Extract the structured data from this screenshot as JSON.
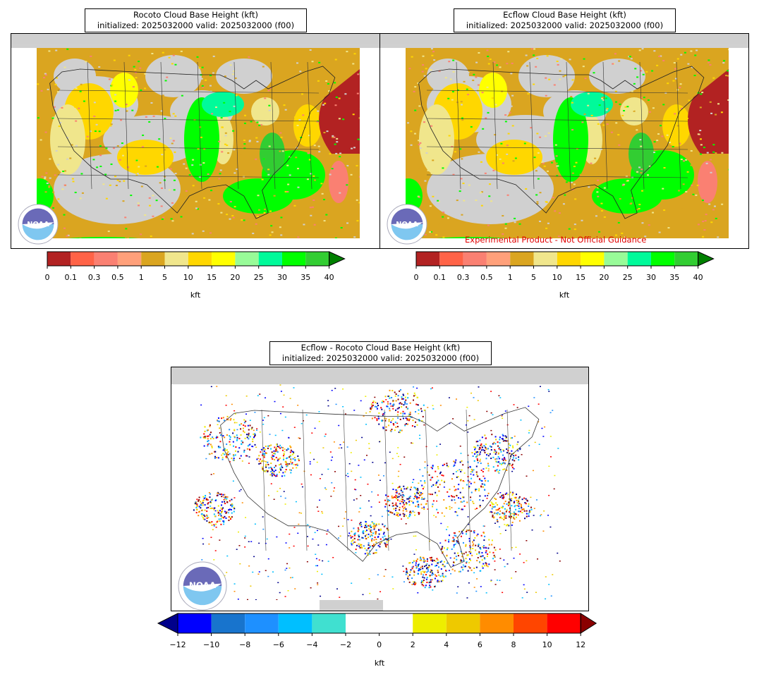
{
  "panels": [
    {
      "id": "rocoto",
      "title_line1": "Rocoto Cloud Base Height (kft)",
      "title_line2": "initialized: 2025032000 valid: 2025032000 (f00)"
    },
    {
      "id": "ecflow",
      "title_line1": "Ecflow Cloud Base Height (kft)",
      "title_line2": "initialized: 2025032000 valid: 2025032000 (f00)",
      "disclaimer": "Experimental Product - Not Official Guidance"
    },
    {
      "id": "diff",
      "title_line1": "Ecflow - Rocoto Cloud Base Height (kft)",
      "title_line2": "initialized: 2025032000 valid: 2025032000 (f00)"
    }
  ],
  "logo_text": "NOAA",
  "colorbar_top": {
    "unit_label": "kft",
    "ticks": [
      "0",
      "0.1",
      "0.3",
      "0.5",
      "1",
      "5",
      "10",
      "15",
      "20",
      "25",
      "30",
      "35",
      "40"
    ],
    "colors": [
      "#b22222",
      "#ff6347",
      "#fa8072",
      "#ffa07a",
      "#daa520",
      "#f0e68c",
      "#ffd700",
      "#ffff00",
      "#98fb98",
      "#00fa9a",
      "#00ff00",
      "#32cd32"
    ],
    "extend_color": "#008000"
  },
  "colorbar_diff": {
    "unit_label": "kft",
    "ticks": [
      "−12",
      "−10",
      "−8",
      "−6",
      "−4",
      "−2",
      "0",
      "2",
      "4",
      "6",
      "8",
      "10",
      "12"
    ],
    "colors": [
      "#0000ff",
      "#1874cd",
      "#1e90ff",
      "#00bfff",
      "#40e0d0",
      "#ffffff",
      "#ffffff",
      "#eeee00",
      "#eec900",
      "#ff8c00",
      "#ff4500",
      "#ff0000"
    ],
    "extend_low": "#00008b",
    "extend_high": "#8b0000"
  }
}
